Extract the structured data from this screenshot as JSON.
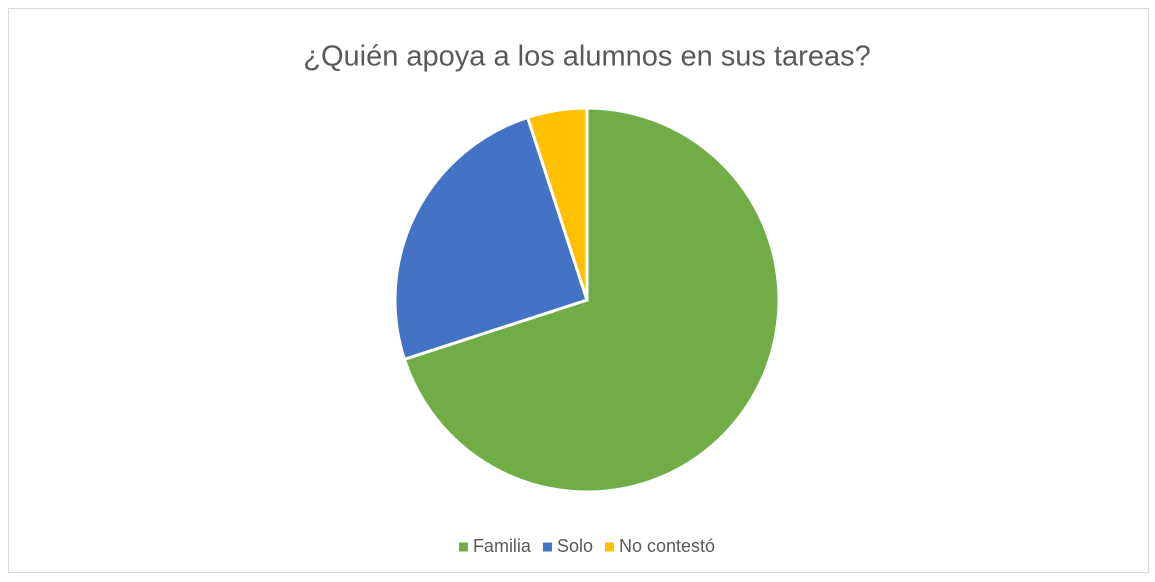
{
  "chart_data": {
    "type": "pie",
    "title": "¿Quién apoya a los alumnos en sus tareas?",
    "categories": [
      "Familia",
      "Solo",
      "No contestó"
    ],
    "values": [
      70,
      25,
      5
    ],
    "colors": [
      "#70ad47",
      "#4472c4",
      "#ffc000"
    ],
    "legend": "bottom"
  }
}
